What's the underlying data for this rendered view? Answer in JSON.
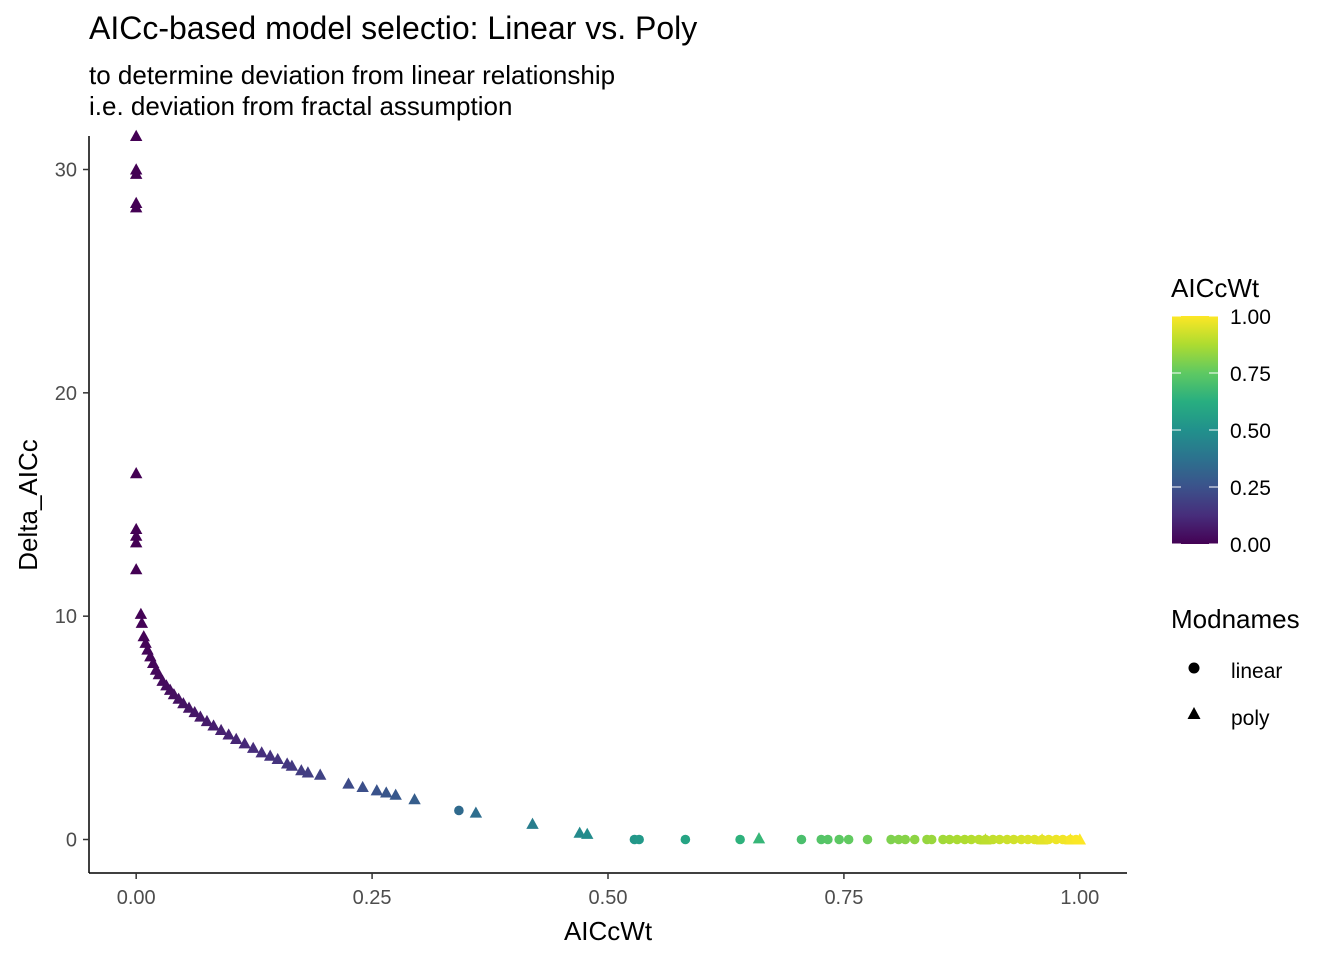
{
  "chart_data": {
    "type": "scatter",
    "title": "AICc-based model selectio: Linear vs. Poly",
    "subtitle_lines": [
      "to determine deviation from linear relationship",
      "i.e. deviation from fractal assumption"
    ],
    "xlabel": "AICcWt",
    "ylabel": "Delta_AICc",
    "xlim": [
      -0.05,
      1.05
    ],
    "ylim": [
      -1.5,
      31.5
    ],
    "x_ticks": [
      0,
      0.25,
      0.5,
      0.75,
      1
    ],
    "x_tick_labels": [
      "0.00",
      "0.25",
      "0.50",
      "0.75",
      "1.00"
    ],
    "y_ticks": [
      0,
      10,
      20,
      30
    ],
    "y_tick_labels": [
      "0",
      "10",
      "20",
      "30"
    ],
    "grid": false,
    "legend_position": "right",
    "color_legend": {
      "title": "AICcWt",
      "labels": [
        "1.00",
        "0.75",
        "0.50",
        "0.25",
        "0.00"
      ],
      "colormap": "viridis"
    },
    "shape_legend": {
      "title": "Modnames",
      "entries": [
        {
          "label": "linear",
          "shape": "circle"
        },
        {
          "label": "poly",
          "shape": "triangle"
        }
      ]
    },
    "series": [
      {
        "name": "poly",
        "shape": "triangle",
        "points": [
          [
            0.0,
            31.5
          ],
          [
            0.0,
            30.0
          ],
          [
            0.0,
            29.8
          ],
          [
            0.0,
            28.5
          ],
          [
            0.0,
            28.3
          ],
          [
            0.0,
            16.4
          ],
          [
            0.0,
            13.9
          ],
          [
            0.0,
            13.6
          ],
          [
            0.0,
            13.3
          ],
          [
            0.0,
            12.1
          ],
          [
            0.005,
            10.1
          ],
          [
            0.006,
            9.7
          ],
          [
            0.008,
            9.1
          ],
          [
            0.01,
            8.8
          ],
          [
            0.012,
            8.5
          ],
          [
            0.015,
            8.2
          ],
          [
            0.018,
            7.9
          ],
          [
            0.021,
            7.6
          ],
          [
            0.024,
            7.4
          ],
          [
            0.028,
            7.1
          ],
          [
            0.032,
            6.9
          ],
          [
            0.036,
            6.7
          ],
          [
            0.04,
            6.5
          ],
          [
            0.045,
            6.3
          ],
          [
            0.05,
            6.1
          ],
          [
            0.056,
            5.9
          ],
          [
            0.062,
            5.7
          ],
          [
            0.068,
            5.5
          ],
          [
            0.075,
            5.3
          ],
          [
            0.082,
            5.1
          ],
          [
            0.09,
            4.9
          ],
          [
            0.098,
            4.7
          ],
          [
            0.106,
            4.5
          ],
          [
            0.115,
            4.3
          ],
          [
            0.124,
            4.1
          ],
          [
            0.133,
            3.9
          ],
          [
            0.142,
            3.75
          ],
          [
            0.15,
            3.6
          ],
          [
            0.16,
            3.4
          ],
          [
            0.165,
            3.3
          ],
          [
            0.175,
            3.1
          ],
          [
            0.182,
            3.0
          ],
          [
            0.195,
            2.9
          ],
          [
            0.225,
            2.5
          ],
          [
            0.24,
            2.35
          ],
          [
            0.255,
            2.2
          ],
          [
            0.265,
            2.1
          ],
          [
            0.275,
            2.0
          ],
          [
            0.295,
            1.8
          ],
          [
            0.36,
            1.2
          ],
          [
            0.42,
            0.7
          ],
          [
            0.47,
            0.3
          ],
          [
            0.478,
            0.25
          ],
          [
            0.66,
            0.05
          ],
          [
            0.9,
            0.0
          ],
          [
            0.96,
            0.0
          ],
          [
            0.99,
            0.0
          ],
          [
            1.0,
            0.0
          ]
        ]
      },
      {
        "name": "linear",
        "shape": "circle",
        "points": [
          [
            0.342,
            1.3
          ],
          [
            0.528,
            0.0
          ],
          [
            0.533,
            0.0
          ],
          [
            0.582,
            0.0
          ],
          [
            0.64,
            0.0
          ],
          [
            0.705,
            0.0
          ],
          [
            0.726,
            0.0
          ],
          [
            0.733,
            0.0
          ],
          [
            0.745,
            0.0
          ],
          [
            0.755,
            0.0
          ],
          [
            0.775,
            0.0
          ],
          [
            0.8,
            0.0
          ],
          [
            0.808,
            0.0
          ],
          [
            0.815,
            0.0
          ],
          [
            0.825,
            0.0
          ],
          [
            0.838,
            0.0
          ],
          [
            0.843,
            0.0
          ],
          [
            0.855,
            0.0
          ],
          [
            0.862,
            0.0
          ],
          [
            0.87,
            0.0
          ],
          [
            0.878,
            0.0
          ],
          [
            0.885,
            0.0
          ],
          [
            0.893,
            0.0
          ],
          [
            0.9,
            0.0
          ],
          [
            0.908,
            0.0
          ],
          [
            0.915,
            0.0
          ],
          [
            0.923,
            0.0
          ],
          [
            0.93,
            0.0
          ],
          [
            0.938,
            0.0
          ],
          [
            0.945,
            0.0
          ],
          [
            0.952,
            0.0
          ],
          [
            0.96,
            0.0
          ],
          [
            0.967,
            0.0
          ],
          [
            0.975,
            0.0
          ],
          [
            0.982,
            0.0
          ],
          [
            0.99,
            0.0
          ],
          [
            0.996,
            0.0
          ]
        ]
      }
    ]
  }
}
